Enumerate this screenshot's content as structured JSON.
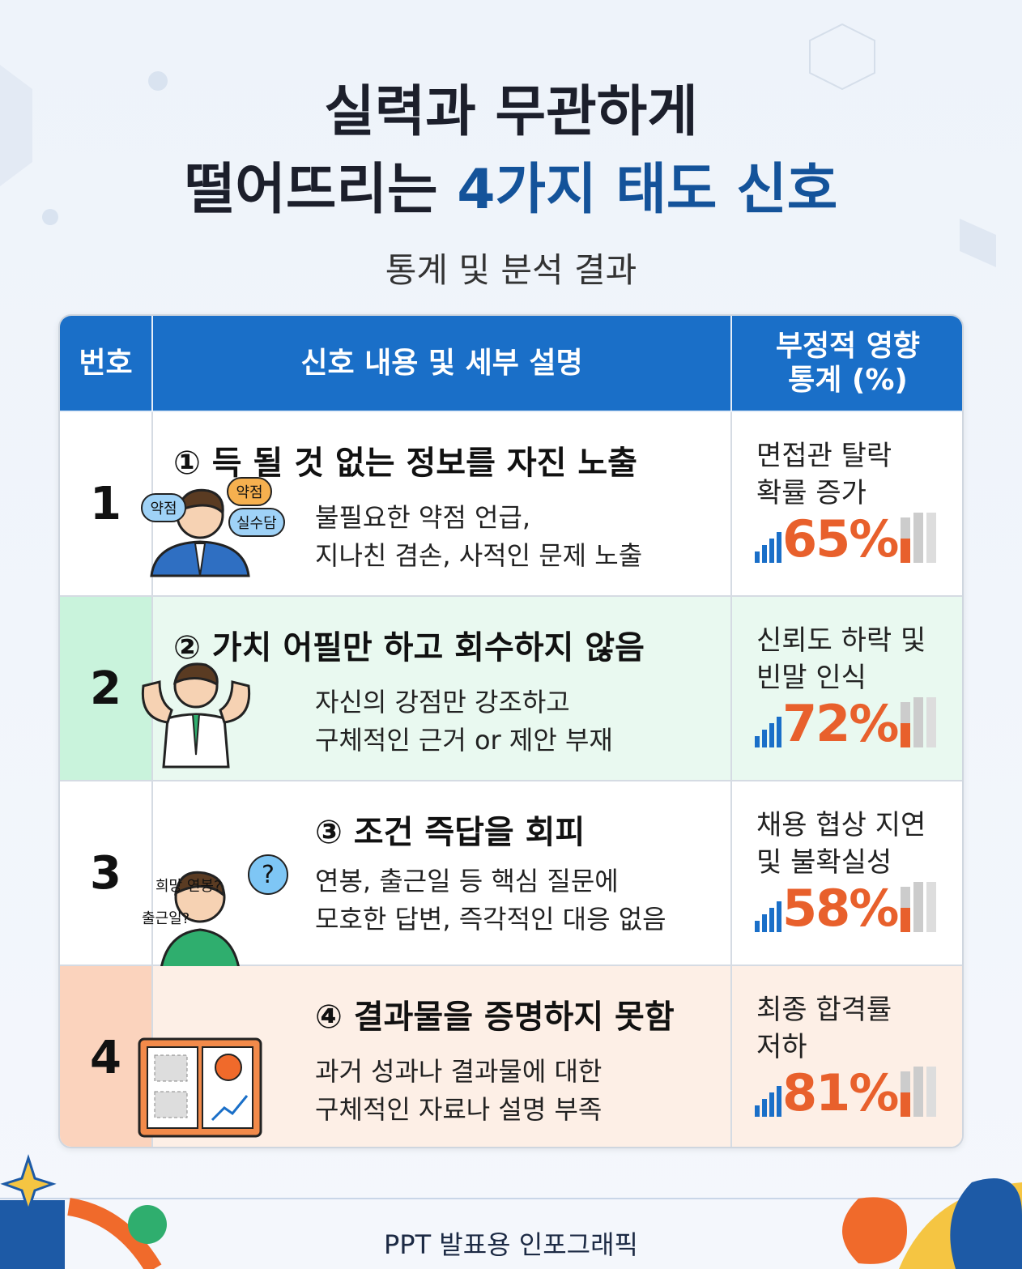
{
  "title": {
    "line1": "실력과 무관하게",
    "line2_lead": "떨어뜨리는",
    "line2_highlight": "4가지 태도 신호"
  },
  "subtitle": "통계 및 분석 결과",
  "table": {
    "headers": [
      "번호",
      "신호 내용 및 세부 설명",
      [
        "부정적 영향",
        "통계 (%)"
      ]
    ],
    "rows": [
      {
        "number": "1",
        "heading": "① 득 될 것 없는 정보를 자진 노출",
        "description": [
          "불필요한 약점 언급,",
          "지나친 겸손, 사적인 문제 노출"
        ],
        "bubbles": [
          "약점",
          "약점",
          "실수담"
        ],
        "stat_label": [
          "면접관 탈락",
          "확률 증가"
        ],
        "stat_value": "65%"
      },
      {
        "number": "2",
        "heading": "② 가치 어필만 하고 회수하지 않음",
        "description": [
          "자신의 강점만 강조하고",
          "구체적인 근거 or 제안 부재"
        ],
        "bubbles": [],
        "stat_label": [
          "신뢰도 하락 및",
          "빈말 인식"
        ],
        "stat_value": "72%"
      },
      {
        "number": "3",
        "heading": "③ 조건 즉답을 회피",
        "description": [
          "연봉, 출근일 등 핵심 질문에",
          "모호한 답변, 즉각적인 대응 없음"
        ],
        "bubbles": [
          "희망 연봉?",
          "출근일?",
          "?"
        ],
        "stat_label": [
          "채용 협상 지연",
          "및 불확실성"
        ],
        "stat_value": "58%"
      },
      {
        "number": "4",
        "heading": "④ 결과물을 증명하지 못함",
        "description": [
          "과거 성과나 결과물에 대한",
          "구체적인 자료나 설명 부족"
        ],
        "bubbles": [],
        "stat_label": [
          "최종 합격률",
          "저하"
        ],
        "stat_value": "81%"
      }
    ]
  },
  "footer": "PPT 발표용 인포그래픽"
}
